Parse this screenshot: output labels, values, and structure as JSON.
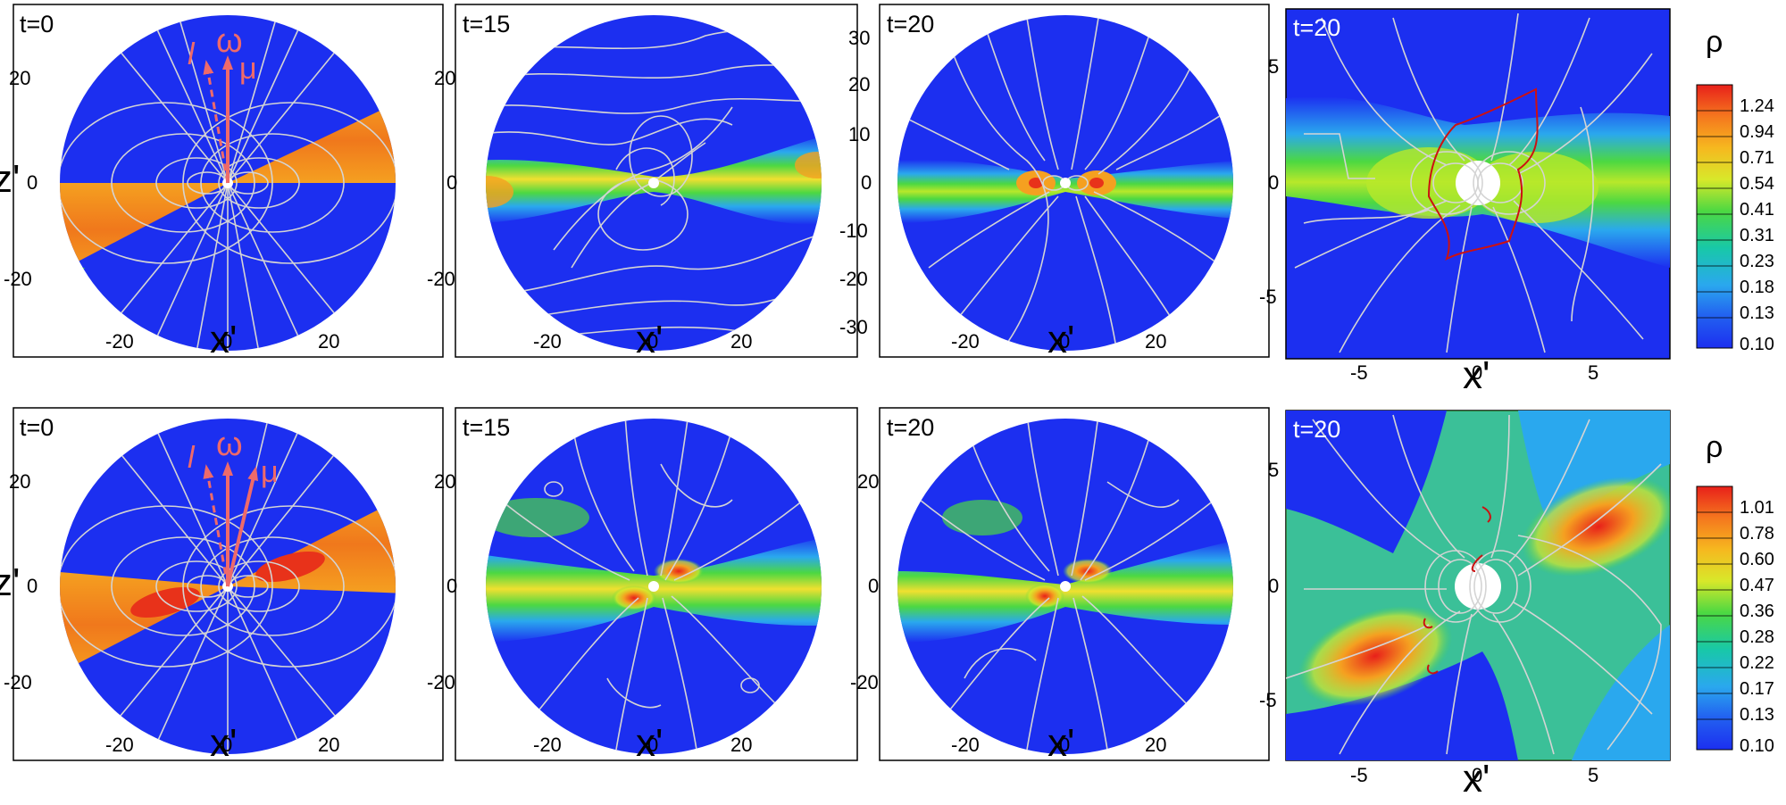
{
  "figure": {
    "rows": [
      {
        "panels": [
          {
            "time_label": "t=0",
            "xlabel": "x'",
            "ylabel": "z'",
            "xticks": [
              "-20",
              "0",
              "20"
            ],
            "yticks": [
              "20",
              "0",
              "-20"
            ],
            "vector_labels": {
              "l": "l",
              "omega": "ω",
              "mu": "μ"
            }
          },
          {
            "time_label": "t=15",
            "xlabel": "x'",
            "xticks": [
              "-20",
              "0",
              "20"
            ],
            "yticks": [
              "20",
              "0",
              "-20"
            ]
          },
          {
            "time_label": "t=20",
            "xlabel": "x'",
            "xticks": [
              "-20",
              "0",
              "20"
            ],
            "yticks": [
              "30",
              "20",
              "10",
              "0",
              "-10",
              "-20",
              "-30"
            ]
          },
          {
            "time_label": "t=20",
            "xlabel": "x'",
            "xticks": [
              "-5",
              "0",
              "5"
            ],
            "yticks": [
              "5",
              "0",
              "-5"
            ]
          }
        ],
        "colorbar": {
          "label": "ρ",
          "ticks": [
            "1.24",
            "0.94",
            "0.71",
            "0.54",
            "0.41",
            "0.31",
            "0.23",
            "0.18",
            "0.13",
            "0.10"
          ]
        }
      },
      {
        "panels": [
          {
            "time_label": "t=0",
            "xlabel": "x'",
            "ylabel": "z'",
            "xticks": [
              "-20",
              "0",
              "20"
            ],
            "yticks": [
              "20",
              "0",
              "-20"
            ],
            "vector_labels": {
              "l": "l",
              "omega": "ω",
              "mu": "μ"
            }
          },
          {
            "time_label": "t=15",
            "xlabel": "x'",
            "xticks": [
              "-20",
              "0",
              "20"
            ],
            "yticks": [
              "20",
              "0",
              "-20"
            ]
          },
          {
            "time_label": "t=20",
            "xlabel": "x'",
            "xticks": [
              "-20",
              "0",
              "20"
            ],
            "yticks": [
              "20",
              "0",
              "-20"
            ]
          },
          {
            "time_label": "t=20",
            "xlabel": "x'",
            "xticks": [
              "-5",
              "0",
              "5"
            ],
            "yticks": [
              "5",
              "0",
              "-5"
            ]
          }
        ],
        "colorbar": {
          "label": "ρ",
          "ticks": [
            "1.01",
            "0.78",
            "0.60",
            "0.47",
            "0.36",
            "0.28",
            "0.22",
            "0.17",
            "0.13",
            "0.10"
          ]
        }
      }
    ],
    "colors": {
      "background_field": "#1c2ff0",
      "disk_orange": "#f5901e",
      "disk_red": "#e8321a",
      "streamline": "#d4d4d4",
      "vector_arrows": "#ee6a6a",
      "contour_red": "#cc1111"
    }
  }
}
